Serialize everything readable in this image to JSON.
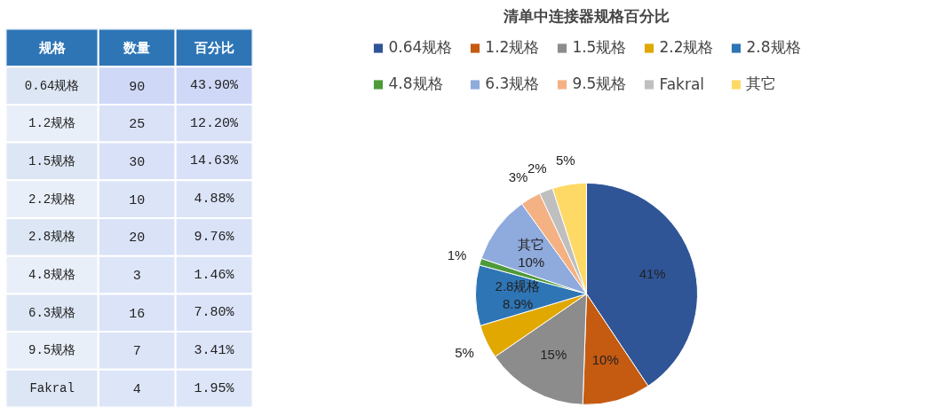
{
  "chart_data": [
    {
      "type": "heatmap",
      "ylabel": "规格",
      "categories": [
        "数量",
        "百分比"
      ],
      "y_categories": [
        "0.64规格",
        "1.2规格",
        "1.5规格",
        "2.2规格",
        "2.8规格",
        "4.8规格",
        "6.3规格",
        "9.5规格",
        "Fakral"
      ],
      "cells": [
        [
          90,
          43.9
        ],
        [
          25,
          12.2
        ],
        [
          30,
          14.63
        ],
        [
          10,
          4.88
        ],
        [
          20,
          9.76
        ],
        [
          3,
          1.46
        ],
        [
          16,
          7.8
        ],
        [
          7,
          3.41
        ],
        [
          4,
          1.95
        ]
      ],
      "cell_labels": [
        [
          "90",
          "43.90%"
        ],
        [
          "25",
          "12.20%"
        ],
        [
          "30",
          "14.63%"
        ],
        [
          "10",
          "4.88%"
        ],
        [
          "20",
          "9.76%"
        ],
        [
          "3",
          "1.46%"
        ],
        [
          "16",
          "7.80%"
        ],
        [
          "7",
          "3.41%"
        ],
        [
          "4",
          "1.95%"
        ]
      ]
    },
    {
      "type": "pie",
      "title": "清单中连接器规格百分比",
      "legend": "top",
      "categories": [
        "0.64规格",
        "1.2规格",
        "1.5规格",
        "2.2规格",
        "2.8规格",
        "4.8规格",
        "6.3规格",
        "9.5规格",
        "Fakral",
        "其它"
      ],
      "values": [
        41,
        10,
        15,
        5,
        8.9,
        1,
        10,
        3,
        2,
        5
      ],
      "colors": [
        "#2f5597",
        "#c55a11",
        "#8c8c8c",
        "#e0a800",
        "#2e75b6",
        "#4e9a3a",
        "#8faadc",
        "#f4b183",
        "#bfbfbf",
        "#ffd966"
      ],
      "value_labels": [
        "41%",
        "10%",
        "15%",
        "5%",
        "2.8规格\n8.9%",
        "1%",
        "其它\n10%",
        "3%",
        "2%",
        "5%"
      ]
    }
  ]
}
